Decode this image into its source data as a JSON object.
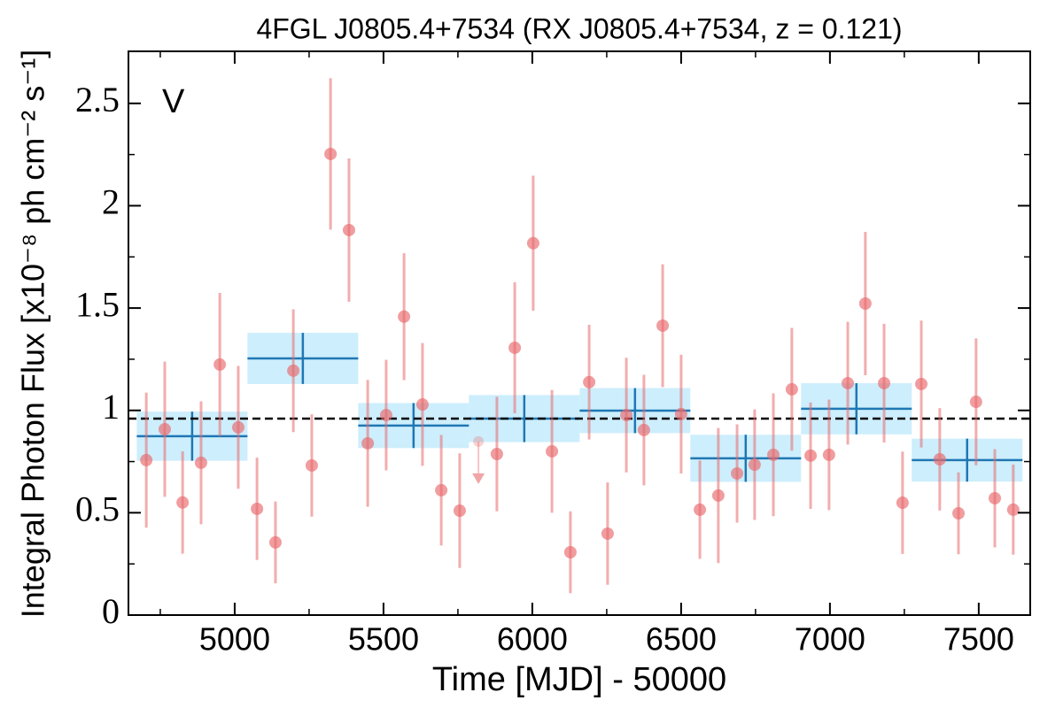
{
  "chart_data": {
    "type": "errorbar",
    "title": "4FGL J0805.4+7534 (RX J0805.4+7534, z = 0.121)",
    "x_label": "Time [MJD] - 50000",
    "y_label": "Integral Photon Flux [x10⁻⁸ ph cm⁻² s⁻¹]",
    "annotation": "V",
    "annotation_color": "#d62728",
    "xlim": [
      4643,
      7673
    ],
    "ylim": [
      0,
      2.75
    ],
    "xticks": [
      5000,
      5500,
      6000,
      6500,
      7000,
      7500
    ],
    "yticks": [
      0,
      0.5,
      1,
      1.5,
      2,
      2.5
    ],
    "xminorticks": [
      4750,
      5250,
      5750,
      6250,
      6750,
      7250
    ],
    "yminorticks": [
      0.25,
      0.75,
      1.25,
      1.75,
      2.25
    ],
    "reference_line": 0.96,
    "points": {
      "color": "#e8696b",
      "x": [
        4703,
        4765,
        4825,
        4887,
        4950,
        5012,
        5075,
        5137,
        5197,
        5259,
        5322,
        5384,
        5447,
        5509,
        5569,
        5631,
        5694,
        5756,
        5881,
        5941,
        6003,
        6066,
        6128,
        6191,
        6253,
        6316,
        6375,
        6438,
        6500,
        6563,
        6625,
        6688,
        6747,
        6810,
        6872,
        6935,
        6997,
        7060,
        7119,
        7182,
        7244,
        7307,
        7369,
        7432,
        7491,
        7554,
        7616
      ],
      "values": [
        0.757,
        0.908,
        0.55,
        0.744,
        1.224,
        0.917,
        0.519,
        0.355,
        1.194,
        0.731,
        2.253,
        1.881,
        0.839,
        0.977,
        1.458,
        1.029,
        0.61,
        0.51,
        0.787,
        1.306,
        1.817,
        0.8,
        0.307,
        1.138,
        0.398,
        0.977,
        0.904,
        1.414,
        0.982,
        0.515,
        0.584,
        0.692,
        0.735,
        0.783,
        1.103,
        0.779,
        0.783,
        1.133,
        1.522,
        1.133,
        0.549,
        1.129,
        0.761,
        0.497,
        1.042,
        0.571,
        0.515
      ],
      "errors": [
        0.33,
        0.33,
        0.25,
        0.3,
        0.35,
        0.3,
        0.25,
        0.2,
        0.3,
        0.25,
        0.37,
        0.35,
        0.31,
        0.27,
        0.31,
        0.3,
        0.27,
        0.28,
        0.28,
        0.32,
        0.33,
        0.3,
        0.2,
        0.28,
        0.25,
        0.28,
        0.27,
        0.3,
        0.29,
        0.24,
        0.33,
        0.24,
        0.27,
        0.3,
        0.3,
        0.26,
        0.27,
        0.3,
        0.35,
        0.29,
        0.25,
        0.31,
        0.25,
        0.2,
        0.31,
        0.24,
        0.22
      ]
    },
    "upper_limit": {
      "x": 5819,
      "value": 0.848,
      "color": "#e8696b"
    },
    "binned": {
      "color": "#1f77b4",
      "fill": "#cdeefc",
      "x": [
        4857,
        5229,
        5601,
        5973,
        6345,
        6717,
        7089,
        7461
      ],
      "xerr": [
        186,
        186,
        186,
        186,
        186,
        186,
        186,
        186
      ],
      "values": [
        0.874,
        1.254,
        0.926,
        0.96,
        0.999,
        0.766,
        1.008,
        0.757
      ],
      "errors": [
        0.12,
        0.125,
        0.11,
        0.115,
        0.11,
        0.115,
        0.125,
        0.105
      ]
    }
  }
}
